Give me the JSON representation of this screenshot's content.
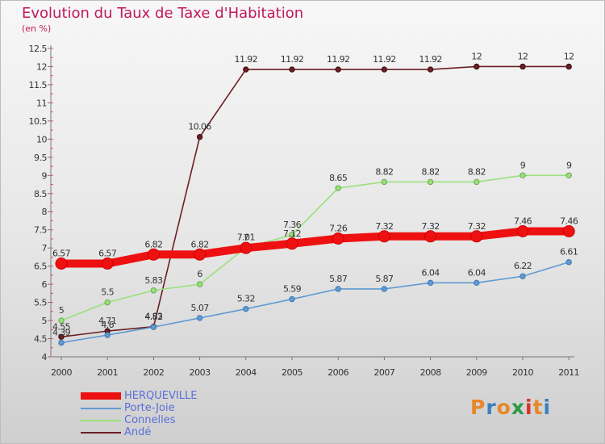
{
  "title": "Evolution du Taux de Taxe d'Habitation",
  "unit": "(en %)",
  "logo": {
    "letters": [
      "P",
      "r",
      "o",
      "x",
      "i",
      "t",
      "i"
    ],
    "colors": [
      "#e8862a",
      "#3a7fc1",
      "#e8862a",
      "#2e9a47",
      "#d6342c",
      "#e8862a",
      "#3a7fc1"
    ]
  },
  "chart_data": {
    "type": "line",
    "title": "Evolution du Taux de Taxe d'Habitation",
    "ylabel": "(en %)",
    "xlabel": "",
    "x": [
      "2000",
      "2001",
      "2002",
      "2003",
      "2004",
      "2005",
      "2006",
      "2007",
      "2008",
      "2009",
      "2010",
      "2011"
    ],
    "ylim": [
      4,
      12.5
    ],
    "yticks": [
      "4",
      "4.5",
      "5",
      "5.5",
      "6",
      "6.5",
      "7",
      "7.5",
      "8",
      "8.5",
      "9",
      "9.5",
      "10",
      "10.5",
      "11",
      "11.5",
      "12",
      "12.5"
    ],
    "grid": false,
    "legend_position": "bottom-left",
    "series": [
      {
        "name": "HERQUEVILLE",
        "color": "#ee1111",
        "values": [
          6.57,
          6.57,
          6.82,
          6.82,
          7.0,
          7.12,
          7.26,
          7.32,
          7.32,
          7.32,
          7.46,
          7.46
        ],
        "labels": [
          "6.57",
          "6.57",
          "6.82",
          "6.82",
          "7",
          "7.12",
          "7.26",
          "7.32",
          "7.32",
          "7.32",
          "7.46",
          "7.46"
        ]
      },
      {
        "name": "Porte-Joie",
        "color": "#5f9ad3",
        "values": [
          4.39,
          4.6,
          4.82,
          5.07,
          5.32,
          5.59,
          5.87,
          5.87,
          6.04,
          6.04,
          6.22,
          6.61
        ],
        "labels": [
          "4.39",
          "4.6",
          "4.82",
          "5.07",
          "5.32",
          "5.59",
          "5.87",
          "5.87",
          "6.04",
          "6.04",
          "6.22",
          "6.61"
        ]
      },
      {
        "name": "Connelles",
        "color": "#99e07a",
        "values": [
          5.0,
          5.5,
          5.83,
          6.0,
          7.01,
          7.36,
          8.65,
          8.82,
          8.82,
          8.82,
          9.0,
          9.0
        ],
        "labels": [
          "5",
          "5.5",
          "5.83",
          "6",
          "7.01",
          "7.36",
          "8.65",
          "8.82",
          "8.82",
          "8.82",
          "9",
          "9"
        ]
      },
      {
        "name": "Andé",
        "color": "#6b1f24",
        "values": [
          4.55,
          4.71,
          4.83,
          10.06,
          11.92,
          11.92,
          11.92,
          11.92,
          11.92,
          12.0,
          12.0,
          12.0
        ],
        "labels": [
          "4.55",
          "4.71",
          "4.83",
          "10.06",
          "11.92",
          "11.92",
          "11.92",
          "11.92",
          "11.92",
          "12",
          "12",
          "12"
        ]
      }
    ]
  }
}
